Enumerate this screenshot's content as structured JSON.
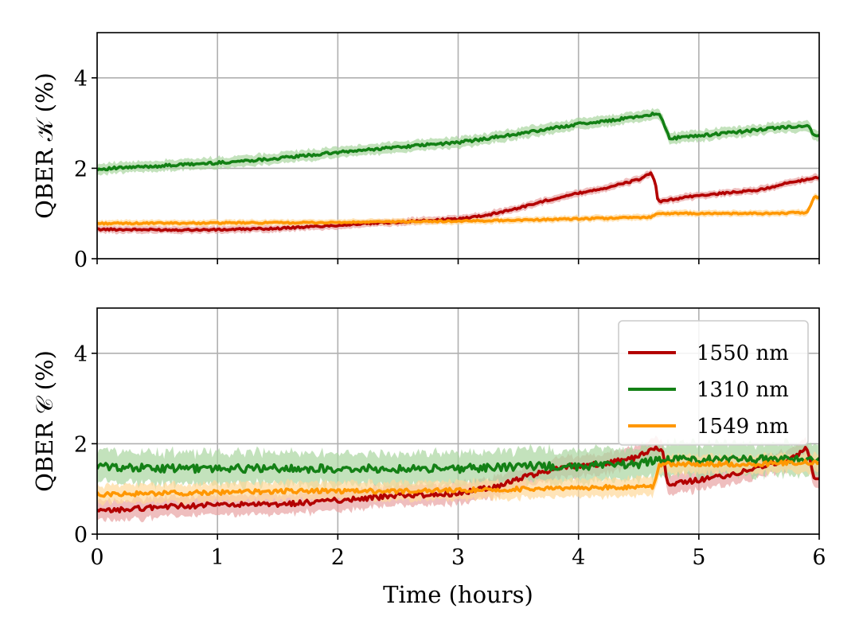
{
  "chart_data": [
    {
      "type": "line",
      "ylabel": "QBER 𝒦 (%)",
      "xlim": [
        0,
        6
      ],
      "ylim": [
        0,
        5
      ],
      "xticks": [
        "0",
        "1",
        "2",
        "3",
        "4",
        "5",
        "6"
      ],
      "yticks": [
        "0",
        "2",
        "4"
      ],
      "show_xtick_labels": false,
      "grid": true,
      "series": [
        {
          "name": "1550 nm",
          "color": "#b30000",
          "band_color": "#e8a3a3",
          "band": 0.08,
          "points": [
            [
              0,
              0.65
            ],
            [
              0.5,
              0.64
            ],
            [
              1,
              0.64
            ],
            [
              1.5,
              0.67
            ],
            [
              2,
              0.74
            ],
            [
              2.5,
              0.81
            ],
            [
              3,
              0.88
            ],
            [
              3.25,
              0.97
            ],
            [
              3.5,
              1.12
            ],
            [
              3.75,
              1.3
            ],
            [
              4,
              1.45
            ],
            [
              4.25,
              1.58
            ],
            [
              4.5,
              1.75
            ],
            [
              4.6,
              1.9
            ],
            [
              4.64,
              1.65
            ],
            [
              4.66,
              1.25
            ],
            [
              4.75,
              1.3
            ],
            [
              5,
              1.4
            ],
            [
              5.25,
              1.46
            ],
            [
              5.5,
              1.52
            ],
            [
              5.75,
              1.68
            ],
            [
              6,
              1.8
            ]
          ]
        },
        {
          "name": "1310 nm",
          "color": "#138015",
          "band_color": "#a9d6a0",
          "band": 0.12,
          "points": [
            [
              0,
              1.98
            ],
            [
              0.5,
              2.05
            ],
            [
              1,
              2.12
            ],
            [
              1.5,
              2.22
            ],
            [
              2,
              2.35
            ],
            [
              2.5,
              2.47
            ],
            [
              3,
              2.57
            ],
            [
              3.5,
              2.76
            ],
            [
              4,
              2.98
            ],
            [
              4.25,
              3.05
            ],
            [
              4.5,
              3.15
            ],
            [
              4.67,
              3.22
            ],
            [
              4.72,
              2.9
            ],
            [
              4.76,
              2.66
            ],
            [
              5,
              2.72
            ],
            [
              5.5,
              2.85
            ],
            [
              5.75,
              2.92
            ],
            [
              5.92,
              2.92
            ],
            [
              5.95,
              2.72
            ],
            [
              6,
              2.72
            ]
          ]
        },
        {
          "name": "1549 nm",
          "color": "#ff9700",
          "band_color": "#ffd89a",
          "band": 0.07,
          "points": [
            [
              0,
              0.78
            ],
            [
              1,
              0.79
            ],
            [
              2,
              0.8
            ],
            [
              2.5,
              0.82
            ],
            [
              3,
              0.83
            ],
            [
              4,
              0.88
            ],
            [
              4.6,
              0.92
            ],
            [
              4.65,
              1.0
            ],
            [
              5,
              1.0
            ],
            [
              5.5,
              1.0
            ],
            [
              5.9,
              1.02
            ],
            [
              5.96,
              1.38
            ],
            [
              6,
              1.35
            ]
          ]
        }
      ]
    },
    {
      "type": "line",
      "xlabel": "Time (hours)",
      "ylabel": "QBER 𝒞 (%)",
      "xlim": [
        0,
        6
      ],
      "ylim": [
        0,
        5
      ],
      "xticks": [
        "0",
        "1",
        "2",
        "3",
        "4",
        "5",
        "6"
      ],
      "yticks": [
        "0",
        "2",
        "4"
      ],
      "show_xtick_labels": true,
      "grid": true,
      "legend": "upper right",
      "series": [
        {
          "name": "1550 nm",
          "color": "#b30000",
          "band_color": "#e8a3a3",
          "band": 0.22,
          "points": [
            [
              0,
              0.5
            ],
            [
              0.5,
              0.6
            ],
            [
              1,
              0.65
            ],
            [
              1.5,
              0.65
            ],
            [
              2,
              0.75
            ],
            [
              2.5,
              0.85
            ],
            [
              3,
              0.9
            ],
            [
              3.3,
              1.05
            ],
            [
              3.6,
              1.3
            ],
            [
              3.9,
              1.5
            ],
            [
              4.2,
              1.55
            ],
            [
              4.5,
              1.7
            ],
            [
              4.55,
              1.8
            ],
            [
              4.62,
              1.9
            ],
            [
              4.7,
              1.85
            ],
            [
              4.74,
              1.1
            ],
            [
              5,
              1.2
            ],
            [
              5.25,
              1.3
            ],
            [
              5.5,
              1.5
            ],
            [
              5.75,
              1.65
            ],
            [
              5.9,
              1.9
            ],
            [
              5.96,
              1.25
            ],
            [
              6,
              1.25
            ]
          ]
        },
        {
          "name": "1310 nm",
          "color": "#138015",
          "band_color": "#a9d6a0",
          "band": 0.35,
          "points": [
            [
              0,
              1.5
            ],
            [
              0.5,
              1.45
            ],
            [
              1,
              1.45
            ],
            [
              1.5,
              1.45
            ],
            [
              2,
              1.45
            ],
            [
              2.5,
              1.45
            ],
            [
              3,
              1.45
            ],
            [
              3.5,
              1.5
            ],
            [
              4,
              1.5
            ],
            [
              4.5,
              1.55
            ],
            [
              4.65,
              1.65
            ],
            [
              5,
              1.65
            ],
            [
              5.5,
              1.65
            ],
            [
              6,
              1.65
            ]
          ]
        },
        {
          "name": "1549 nm",
          "color": "#ff9700",
          "band_color": "#ffd89a",
          "band": 0.2,
          "points": [
            [
              0,
              0.88
            ],
            [
              0.5,
              0.9
            ],
            [
              1,
              0.92
            ],
            [
              1.5,
              0.95
            ],
            [
              2,
              0.95
            ],
            [
              2.5,
              0.95
            ],
            [
              3,
              0.97
            ],
            [
              3.5,
              1.0
            ],
            [
              4,
              1.02
            ],
            [
              4.5,
              1.05
            ],
            [
              4.62,
              1.05
            ],
            [
              4.67,
              1.55
            ],
            [
              5,
              1.55
            ],
            [
              5.5,
              1.55
            ],
            [
              6,
              1.6
            ]
          ]
        }
      ]
    }
  ]
}
